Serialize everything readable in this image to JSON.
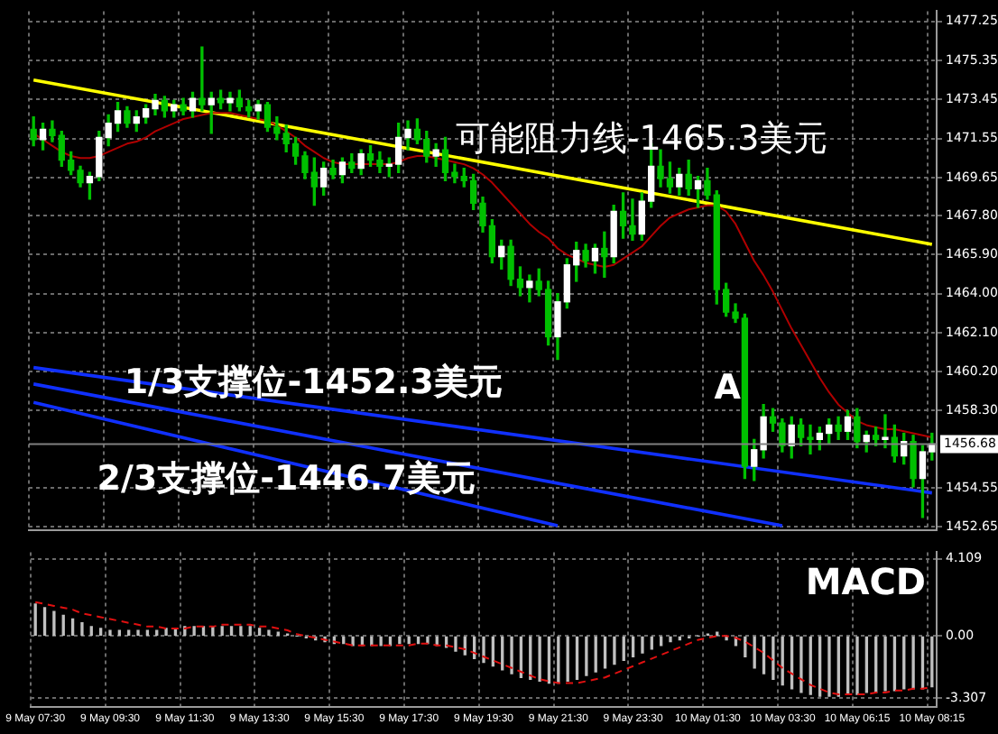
{
  "chart_data": [
    {
      "type": "candlestick",
      "categories": [
        "9 May 07:30",
        null,
        null,
        null,
        null,
        null,
        null,
        null,
        "9 May 09:30",
        null,
        null,
        null,
        null,
        null,
        null,
        null,
        "9 May 11:30",
        null,
        null,
        null,
        null,
        null,
        null,
        null,
        "9 May 13:30",
        null,
        null,
        null,
        null,
        null,
        null,
        null,
        "9 May 15:30",
        null,
        null,
        null,
        null,
        null,
        null,
        null,
        "9 May 17:30",
        null,
        null,
        null,
        null,
        null,
        null,
        null,
        "9 May 19:30",
        null,
        null,
        null,
        null,
        null,
        null,
        null,
        "9 May 21:30",
        null,
        null,
        null,
        null,
        null,
        null,
        null,
        "9 May 23:30",
        null,
        null,
        null,
        null,
        null,
        null,
        null,
        "10 May 01:30",
        null,
        null,
        null,
        null,
        null,
        null,
        null,
        "10 May 03:30",
        null,
        null,
        null,
        null,
        null,
        null,
        null,
        "10 May 06:15",
        null,
        null,
        null,
        null,
        null,
        null,
        null,
        "10 May 08:15"
      ],
      "ohlc": [
        [
          1472.0,
          1472.6,
          1471.2,
          1471.5
        ],
        [
          1471.5,
          1472.3,
          1471.0,
          1472.0
        ],
        [
          1472.0,
          1472.4,
          1471.4,
          1471.7
        ],
        [
          1471.7,
          1471.9,
          1470.2,
          1470.5
        ],
        [
          1470.5,
          1470.9,
          1469.8,
          1470.0
        ],
        [
          1470.0,
          1470.2,
          1469.2,
          1469.4
        ],
        [
          1469.4,
          1469.9,
          1468.6,
          1469.7
        ],
        [
          1469.7,
          1471.9,
          1469.5,
          1471.6
        ],
        [
          1471.6,
          1472.7,
          1471.2,
          1472.3
        ],
        [
          1472.3,
          1473.3,
          1471.9,
          1472.9
        ],
        [
          1472.9,
          1473.1,
          1472.1,
          1472.3
        ],
        [
          1472.3,
          1472.9,
          1471.9,
          1472.6
        ],
        [
          1472.6,
          1473.2,
          1472.3,
          1473.0
        ],
        [
          1473.0,
          1473.7,
          1472.7,
          1473.4
        ],
        [
          1473.4,
          1473.6,
          1472.6,
          1472.9
        ],
        [
          1472.9,
          1473.4,
          1472.6,
          1473.2
        ],
        [
          1473.2,
          1473.5,
          1472.7,
          1472.9
        ],
        [
          1472.9,
          1473.8,
          1472.6,
          1473.5
        ],
        [
          1473.5,
          1476.0,
          1472.9,
          1473.2
        ],
        [
          1473.2,
          1473.8,
          1471.8,
          1473.5
        ],
        [
          1473.5,
          1473.9,
          1473.0,
          1473.3
        ],
        [
          1473.3,
          1473.8,
          1472.9,
          1473.5
        ],
        [
          1473.5,
          1473.9,
          1472.9,
          1473.1
        ],
        [
          1473.1,
          1473.4,
          1472.6,
          1472.9
        ],
        [
          1472.9,
          1473.4,
          1472.5,
          1473.2
        ],
        [
          1473.2,
          1473.3,
          1471.9,
          1472.1
        ],
        [
          1472.1,
          1472.6,
          1471.5,
          1471.8
        ],
        [
          1471.8,
          1472.2,
          1470.9,
          1471.3
        ],
        [
          1471.3,
          1471.6,
          1470.3,
          1470.7
        ],
        [
          1470.7,
          1470.9,
          1469.6,
          1469.9
        ],
        [
          1469.9,
          1470.6,
          1468.3,
          1469.2
        ],
        [
          1469.2,
          1470.4,
          1468.8,
          1470.1
        ],
        [
          1470.1,
          1470.5,
          1469.6,
          1469.8
        ],
        [
          1469.8,
          1470.6,
          1469.4,
          1470.4
        ],
        [
          1470.4,
          1470.8,
          1469.9,
          1470.1
        ],
        [
          1470.1,
          1471.0,
          1469.8,
          1470.8
        ],
        [
          1470.8,
          1471.2,
          1470.2,
          1470.5
        ],
        [
          1470.5,
          1470.9,
          1469.9,
          1470.2
        ],
        [
          1470.2,
          1470.6,
          1469.7,
          1470.3
        ],
        [
          1470.3,
          1472.3,
          1469.9,
          1471.6
        ],
        [
          1471.6,
          1472.4,
          1471.0,
          1472.0
        ],
        [
          1472.0,
          1472.5,
          1471.3,
          1471.5
        ],
        [
          1471.5,
          1471.9,
          1470.4,
          1470.7
        ],
        [
          1470.7,
          1471.3,
          1470.2,
          1471.0
        ],
        [
          1471.0,
          1471.6,
          1469.5,
          1469.9
        ],
        [
          1469.9,
          1470.3,
          1469.4,
          1469.7
        ],
        [
          1469.7,
          1470.1,
          1469.2,
          1469.5
        ],
        [
          1469.5,
          1469.8,
          1468.1,
          1468.4
        ],
        [
          1468.4,
          1468.7,
          1467.0,
          1467.3
        ],
        [
          1467.3,
          1467.6,
          1465.5,
          1465.8
        ],
        [
          1465.8,
          1466.6,
          1465.2,
          1466.3
        ],
        [
          1466.3,
          1466.6,
          1464.4,
          1464.7
        ],
        [
          1464.7,
          1465.3,
          1463.9,
          1464.3
        ],
        [
          1464.3,
          1464.9,
          1463.6,
          1464.6
        ],
        [
          1464.6,
          1465.2,
          1463.9,
          1464.2
        ],
        [
          1464.2,
          1464.6,
          1461.5,
          1461.9
        ],
        [
          1461.9,
          1464.0,
          1460.8,
          1463.6
        ],
        [
          1463.6,
          1465.7,
          1463.3,
          1465.4
        ],
        [
          1465.4,
          1466.5,
          1464.6,
          1466.1
        ],
        [
          1466.1,
          1466.4,
          1465.3,
          1465.6
        ],
        [
          1465.6,
          1466.4,
          1465.0,
          1466.2
        ],
        [
          1466.2,
          1467.0,
          1464.8,
          1465.8
        ],
        [
          1465.8,
          1468.3,
          1465.5,
          1468.0
        ],
        [
          1468.0,
          1468.9,
          1466.7,
          1467.3
        ],
        [
          1467.3,
          1468.6,
          1466.6,
          1466.9
        ],
        [
          1466.9,
          1468.9,
          1466.6,
          1468.5
        ],
        [
          1468.5,
          1471.3,
          1468.2,
          1470.2
        ],
        [
          1470.2,
          1471.0,
          1469.2,
          1469.6
        ],
        [
          1469.6,
          1470.4,
          1468.9,
          1469.2
        ],
        [
          1469.2,
          1470.1,
          1468.8,
          1469.8
        ],
        [
          1469.8,
          1470.5,
          1468.8,
          1469.1
        ],
        [
          1469.1,
          1469.7,
          1468.2,
          1469.5
        ],
        [
          1469.5,
          1470.1,
          1468.6,
          1468.8
        ],
        [
          1468.8,
          1469.0,
          1463.5,
          1464.2
        ],
        [
          1464.2,
          1464.5,
          1462.9,
          1463.1
        ],
        [
          1463.1,
          1463.5,
          1462.6,
          1462.8
        ],
        [
          1462.8,
          1463.0,
          1455.0,
          1455.6
        ],
        [
          1455.6,
          1456.9,
          1454.9,
          1456.4
        ],
        [
          1456.4,
          1458.6,
          1456.0,
          1458.0
        ],
        [
          1458.0,
          1458.4,
          1457.3,
          1457.7
        ],
        [
          1457.7,
          1457.9,
          1456.3,
          1456.6
        ],
        [
          1456.6,
          1458.0,
          1456.0,
          1457.6
        ],
        [
          1457.6,
          1457.9,
          1456.6,
          1457.0
        ],
        [
          1457.0,
          1457.6,
          1456.2,
          1456.9
        ],
        [
          1456.9,
          1457.5,
          1456.4,
          1457.2
        ],
        [
          1457.2,
          1457.9,
          1456.7,
          1457.6
        ],
        [
          1457.6,
          1458.0,
          1456.9,
          1457.3
        ],
        [
          1457.3,
          1458.3,
          1456.9,
          1458.0
        ],
        [
          1458.0,
          1458.4,
          1456.5,
          1456.8
        ],
        [
          1456.8,
          1457.3,
          1456.3,
          1457.1
        ],
        [
          1457.1,
          1457.5,
          1456.6,
          1456.9
        ],
        [
          1456.9,
          1458.1,
          1456.5,
          1457.0
        ],
        [
          1457.0,
          1457.6,
          1455.8,
          1456.1
        ],
        [
          1456.1,
          1457.2,
          1455.7,
          1456.8
        ],
        [
          1456.8,
          1457.1,
          1454.6,
          1455.0
        ],
        [
          1455.0,
          1456.6,
          1453.1,
          1456.3
        ],
        [
          1456.3,
          1457.2,
          1455.9,
          1456.68
        ]
      ],
      "series": [
        {
          "type": "line",
          "color": "#b00000",
          "values": [
            1471.8,
            1471.5,
            1471.2,
            1470.9,
            1470.7,
            1470.6,
            1470.6,
            1470.7,
            1470.9,
            1471.1,
            1471.3,
            1471.4,
            1471.6,
            1471.9,
            1472.1,
            1472.3,
            1472.5,
            1472.6,
            1472.7,
            1472.8,
            1472.8,
            1472.8,
            1472.7,
            1472.6,
            1472.5,
            1472.4,
            1472.2,
            1471.9,
            1471.6,
            1471.2,
            1470.9,
            1470.6,
            1470.4,
            1470.3,
            1470.3,
            1470.3,
            1470.3,
            1470.3,
            1470.3,
            1470.4,
            1470.6,
            1470.7,
            1470.7,
            1470.6,
            1470.5,
            1470.4,
            1470.3,
            1470.1,
            1469.8,
            1469.4,
            1468.9,
            1468.4,
            1467.9,
            1467.4,
            1467.0,
            1466.7,
            1466.2,
            1465.9,
            1465.7,
            1465.5,
            1465.4,
            1465.3,
            1465.4,
            1465.7,
            1466.0,
            1466.3,
            1466.8,
            1467.3,
            1467.7,
            1467.9,
            1468.1,
            1468.2,
            1468.3,
            1468.3,
            1468.0,
            1467.4,
            1466.5,
            1465.6,
            1464.9,
            1464.1,
            1463.2,
            1462.3,
            1461.5,
            1460.7,
            1459.9,
            1459.2,
            1458.6,
            1458.2,
            1457.8,
            1457.6,
            1457.5,
            1457.4,
            1457.4,
            1457.3,
            1457.2,
            1457.1,
            1457.0
          ]
        },
        {
          "type": "line",
          "color": "#ffff00",
          "x": [
            "9 May 07:30",
            "10 May 08:15"
          ],
          "values": [
            1474.4,
            1466.4
          ]
        },
        {
          "type": "line",
          "color": "#1030ff",
          "x": [
            "9 May 07:30",
            "10 May 08:15"
          ],
          "values": [
            1460.4,
            1454.3
          ]
        },
        {
          "type": "line",
          "color": "#1030ff",
          "x": [
            "9 May 07:30",
            "10 May 03:30"
          ],
          "values": [
            1459.6,
            1452.7
          ]
        },
        {
          "type": "line",
          "color": "#1030ff",
          "x": [
            "9 May 07:30",
            "9 May 21:30"
          ],
          "values": [
            1458.7,
            1452.7
          ]
        }
      ],
      "ylim": [
        1452.5,
        1477.75
      ],
      "yticks": [
        1452.65,
        1454.55,
        {
          "value": 1458.3,
          "label": "1458.30"
        },
        {
          "value": 1460.2,
          "label": "1460.20"
        },
        {
          "value": 1462.1,
          "label": "1462.10"
        },
        {
          "value": 1464,
          "label": "1464.00"
        },
        {
          "value": 1465.9,
          "label": "1465.90"
        },
        {
          "value": 1467.8,
          "label": "1467.80"
        },
        1469.65,
        1471.55,
        1473.45,
        1475.35,
        1477.25
      ],
      "ref_lines": [
        {
          "axis": "y",
          "value": 1456.68,
          "label": "1456.68",
          "color": "#808080"
        }
      ],
      "annotations": [
        "可能阻力线-1465.3美元",
        "1/3支撑位-1452.3美元",
        "2/3支撑位-1446.7美元",
        "A"
      ],
      "grid": true,
      "legend": false,
      "tick_labels": "y"
    },
    {
      "type": "bar",
      "title": "MACD",
      "categories": [
        "9 May 07:30",
        null,
        null,
        null,
        null,
        null,
        null,
        null,
        "9 May 09:30",
        null,
        null,
        null,
        null,
        null,
        null,
        null,
        "9 May 11:30",
        null,
        null,
        null,
        null,
        null,
        null,
        null,
        "9 May 13:30",
        null,
        null,
        null,
        null,
        null,
        null,
        null,
        "9 May 15:30",
        null,
        null,
        null,
        null,
        null,
        null,
        null,
        "9 May 17:30",
        null,
        null,
        null,
        null,
        null,
        null,
        null,
        "9 May 19:30",
        null,
        null,
        null,
        null,
        null,
        null,
        null,
        "9 May 21:30",
        null,
        null,
        null,
        null,
        null,
        null,
        null,
        "9 May 23:30",
        null,
        null,
        null,
        null,
        null,
        null,
        null,
        "10 May 01:30",
        null,
        null,
        null,
        null,
        null,
        null,
        null,
        "10 May 03:30",
        null,
        null,
        null,
        null,
        null,
        null,
        null,
        "10 May 06:15",
        null,
        null,
        null,
        null,
        null,
        null,
        null,
        "10 May 08:15"
      ],
      "series": [
        {
          "type": "bar",
          "color": "#c0c0c0",
          "values": [
            1.7,
            1.5,
            1.3,
            1.1,
            0.9,
            0.7,
            0.5,
            0.4,
            0.3,
            0.3,
            0.3,
            0.3,
            0.3,
            0.3,
            0.4,
            0.4,
            0.5,
            0.5,
            0.5,
            0.5,
            0.5,
            0.5,
            0.5,
            0.5,
            0.4,
            0.3,
            0.2,
            0.1,
            0.0,
            -0.1,
            -0.2,
            -0.3,
            -0.4,
            -0.4,
            -0.5,
            -0.5,
            -0.5,
            -0.5,
            -0.5,
            -0.4,
            -0.4,
            -0.4,
            -0.4,
            -0.5,
            -0.6,
            -0.8,
            -1.0,
            -1.2,
            -1.4,
            -1.6,
            -1.8,
            -2.0,
            -2.2,
            -2.3,
            -2.4,
            -2.5,
            -2.5,
            -2.4,
            -2.3,
            -2.1,
            -1.9,
            -1.7,
            -1.5,
            -1.3,
            -1.1,
            -0.9,
            -0.7,
            -0.5,
            -0.3,
            -0.2,
            -0.1,
            0.0,
            0.1,
            0.2,
            -0.2,
            -0.5,
            -1.1,
            -1.7,
            -2.0,
            -2.3,
            -2.6,
            -2.8,
            -3.0,
            -3.1,
            -3.2,
            -3.2,
            -3.2,
            -3.1,
            -3.1,
            -3.0,
            -3.0,
            -2.9,
            -2.9,
            -2.8,
            -2.8,
            -2.8,
            -2.7
          ]
        },
        {
          "type": "line",
          "color": "#e01010",
          "line_style": "dashed",
          "values": [
            1.8,
            1.7,
            1.6,
            1.5,
            1.4,
            1.2,
            1.1,
            1.0,
            0.9,
            0.8,
            0.7,
            0.6,
            0.5,
            0.5,
            0.4,
            0.4,
            0.4,
            0.5,
            0.5,
            0.5,
            0.6,
            0.6,
            0.6,
            0.6,
            0.5,
            0.5,
            0.4,
            0.3,
            0.1,
            0.0,
            -0.1,
            -0.2,
            -0.3,
            -0.4,
            -0.5,
            -0.5,
            -0.5,
            -0.5,
            -0.5,
            -0.5,
            -0.5,
            -0.4,
            -0.4,
            -0.5,
            -0.5,
            -0.6,
            -0.7,
            -0.9,
            -1.1,
            -1.3,
            -1.5,
            -1.7,
            -1.9,
            -2.1,
            -2.3,
            -2.4,
            -2.5,
            -2.5,
            -2.5,
            -2.4,
            -2.3,
            -2.2,
            -2.0,
            -1.8,
            -1.6,
            -1.4,
            -1.2,
            -1.0,
            -0.8,
            -0.6,
            -0.4,
            -0.2,
            -0.1,
            0.0,
            0.0,
            -0.1,
            -0.3,
            -0.6,
            -0.9,
            -1.3,
            -1.7,
            -2.0,
            -2.3,
            -2.6,
            -2.8,
            -3.0,
            -3.1,
            -3.1,
            -3.1,
            -3.1,
            -3.0,
            -3.0,
            -2.9,
            -2.9,
            -2.8,
            -2.8,
            -2.7
          ]
        }
      ],
      "ylim": [
        -3.75,
        4.45
      ],
      "yticks": [
        -3.307,
        {
          "value": 0,
          "label": "0.00"
        },
        4.109
      ],
      "grid": true,
      "legend": false
    }
  ]
}
